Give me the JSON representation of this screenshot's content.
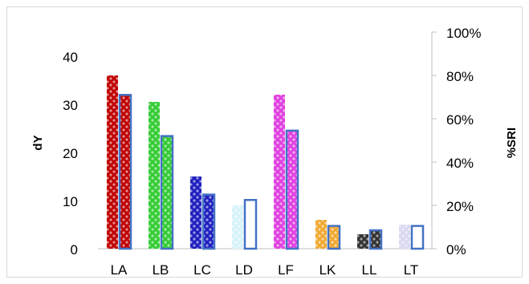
{
  "chart_data": {
    "type": "bar",
    "categories": [
      "LA",
      "LB",
      "LC",
      "LD",
      "LF",
      "LK",
      "LL",
      "LT"
    ],
    "series": [
      {
        "axis": "left",
        "values": [
          36,
          30.5,
          15,
          9,
          32,
          6,
          3,
          5
        ],
        "colors": [
          "#c00000",
          "#33cc33",
          "#1f1fbf",
          "#d6f3fa",
          "#e040e0",
          "#f0a830",
          "#333333",
          "#d8d8f0"
        ]
      },
      {
        "axis": "right",
        "values": [
          71,
          52,
          25,
          22.5,
          54.5,
          10.5,
          8.5,
          10.5
        ],
        "colors": [
          "#c00000",
          "#33cc33",
          "#1f1fbf",
          "#ffffff",
          "#e040e0",
          "#f0a830",
          "#333333",
          "#ffffff"
        ],
        "outline": "#4472c4"
      }
    ],
    "y_left": {
      "label": "dY",
      "range": [
        0,
        45
      ],
      "ticks": [
        "0",
        "10",
        "20",
        "30",
        "40"
      ]
    },
    "y_right": {
      "label": "%SRI",
      "range": [
        0,
        100
      ],
      "ticks": [
        "0%",
        "20%",
        "40%",
        "60%",
        "80%",
        "100%"
      ]
    },
    "grid": false,
    "legend": "none"
  }
}
